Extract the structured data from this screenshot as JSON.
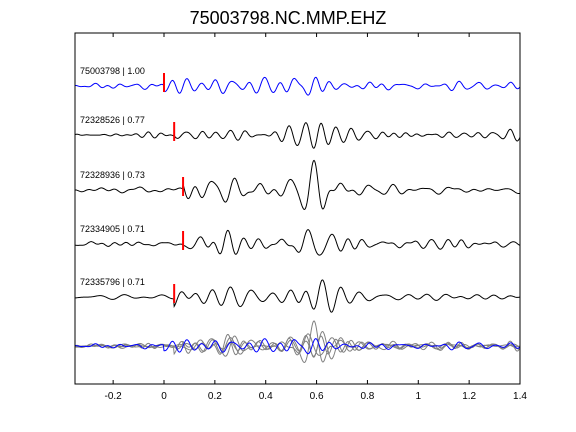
{
  "figure": {
    "title": "75003798.NC.MMP.EHZ"
  },
  "chart_data": {
    "type": "line",
    "title": "75003798.NC.MMP.EHZ",
    "xlabel": "",
    "ylabel": "",
    "xlim": [
      -0.35,
      1.4
    ],
    "xticks": [
      -0.2,
      0,
      0.2,
      0.4,
      0.6,
      0.8,
      1,
      1.2,
      1.4
    ],
    "xtick_labels": [
      "-0.2",
      "0",
      "0.2",
      "0.4",
      "0.6",
      "0.8",
      "1",
      "1.2",
      "1.4"
    ],
    "grid": false,
    "legend": "none",
    "colors": {
      "reference": "#0000ff",
      "correlated": "#000000",
      "stack": "#808080",
      "pick": "#ff0000",
      "axes": "#000000"
    },
    "traces": [
      {
        "label": "75003798 | 1.00",
        "pick_time": 0.0,
        "reference": true
      },
      {
        "label": "72328526 | 0.77",
        "pick_time": 0.04,
        "reference": false
      },
      {
        "label": "72328936 | 0.73",
        "pick_time": 0.075,
        "reference": false
      },
      {
        "label": "72334905 | 0.71",
        "pick_time": 0.075,
        "reference": false
      },
      {
        "label": "72335796 | 0.71",
        "pick_time": 0.04,
        "reference": false
      }
    ],
    "overlay": {
      "label": ""
    }
  }
}
